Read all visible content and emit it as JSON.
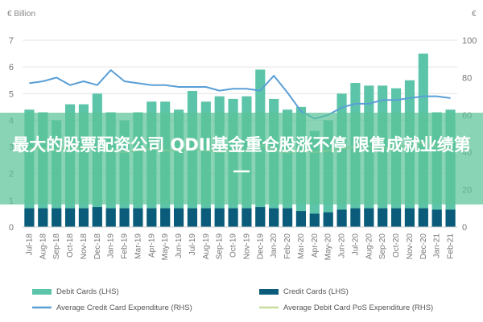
{
  "chart_data": {
    "type": "bar",
    "y_left_unit": "€ Billion",
    "y_right_unit": "€",
    "ylim_left": [
      0,
      7
    ],
    "ylim_right": [
      0,
      100
    ],
    "y_left_ticks": [
      "0",
      "1",
      "2",
      "3",
      "4",
      "5",
      "6",
      "7"
    ],
    "y_right_ticks": [
      "0",
      "20",
      "40",
      "60",
      "80",
      "100"
    ],
    "categories": [
      "Jul-18",
      "Aug-18",
      "Sep-18",
      "Oct-18",
      "Nov-18",
      "Dec-18",
      "Jan-19",
      "Feb-19",
      "Mar-19",
      "Apr-19",
      "May-19",
      "Jun-19",
      "Jul-19",
      "Aug-19",
      "Sep-19",
      "Oct-19",
      "Nov-19",
      "Dec-19",
      "Jan-20",
      "Feb-20",
      "Mar-20",
      "Apr-20",
      "May-20",
      "Jun-20",
      "Jul-20",
      "Aug-20",
      "Sep-20",
      "Oct-20",
      "Nov-20",
      "Dec-20",
      "Jan-21",
      "Feb-21"
    ],
    "series": [
      {
        "name": "Debit Cards (LHS)",
        "axis": "left",
        "kind": "bar",
        "color": "#5cc4a8",
        "values": [
          4.4,
          4.3,
          4.0,
          4.6,
          4.6,
          5.0,
          4.3,
          4.0,
          4.3,
          4.7,
          4.7,
          4.4,
          5.1,
          4.7,
          4.9,
          4.8,
          4.9,
          5.9,
          4.8,
          4.4,
          4.5,
          3.6,
          4.0,
          5.0,
          5.4,
          5.3,
          5.3,
          5.2,
          5.5,
          6.5,
          4.3,
          4.4
        ]
      },
      {
        "name": "Credit Cards (LHS)",
        "axis": "left",
        "kind": "bar",
        "color": "#0b5b7a",
        "values": [
          0.7,
          0.7,
          0.7,
          0.7,
          0.7,
          0.75,
          0.7,
          0.7,
          0.7,
          0.7,
          0.7,
          0.7,
          0.7,
          0.7,
          0.7,
          0.7,
          0.7,
          0.75,
          0.7,
          0.7,
          0.6,
          0.5,
          0.55,
          0.65,
          0.7,
          0.7,
          0.7,
          0.7,
          0.7,
          0.7,
          0.65,
          0.65
        ]
      },
      {
        "name": "Average Credit Card Expenditure (RHS)",
        "axis": "right",
        "kind": "line",
        "color": "#5a9fd6",
        "values": [
          77,
          78,
          80,
          76,
          78,
          76,
          84,
          78,
          77,
          76,
          76,
          75,
          75,
          75,
          73,
          74,
          74,
          73,
          81,
          72,
          62,
          58,
          60,
          64,
          66,
          66,
          68,
          68,
          69,
          70,
          70,
          69
        ]
      },
      {
        "name": "Average Debit Card PoS Expenditure (RHS)",
        "axis": "right",
        "kind": "line",
        "color": "#c8dc9c",
        "values": [
          42,
          42,
          41,
          43,
          42,
          43,
          41,
          40,
          41,
          42,
          41,
          41,
          42,
          41,
          40,
          41,
          41,
          44,
          41,
          40,
          41,
          40,
          41,
          42,
          43,
          43,
          42,
          43,
          44,
          45,
          43,
          42
        ]
      }
    ]
  },
  "overlay": {
    "text": "最大的股票配资公司 QDII基金重仓股涨不停 限售成就业绩第一"
  }
}
